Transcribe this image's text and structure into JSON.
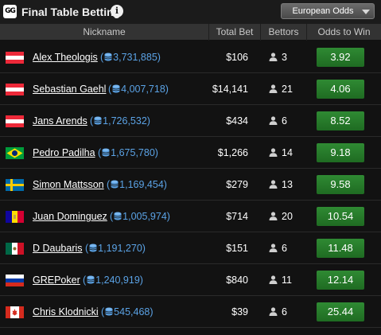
{
  "header": {
    "logo_text": "GG",
    "title": "Final Table Betting",
    "info_icon": "info-icon",
    "odds_format": "European Odds"
  },
  "columns": {
    "nickname": "Nickname",
    "total_bet": "Total Bet",
    "bettors": "Bettors",
    "odds_to_win": "Odds to Win"
  },
  "colors": {
    "chip_blue": "#5ba3e6",
    "odds_green": "#2b7d2f",
    "background": "#121212"
  },
  "rows": [
    {
      "flag": "austria",
      "name": "Alex Theologis",
      "chips": "3,731,885",
      "total_bet": "$106",
      "bettors": "3",
      "odds": "3.92"
    },
    {
      "flag": "austria",
      "name": "Sebastian Gaehl",
      "chips": "4,007,718",
      "total_bet": "$14,141",
      "bettors": "21",
      "odds": "4.06"
    },
    {
      "flag": "austria",
      "name": "Jans Arends",
      "chips": "1,726,532",
      "total_bet": "$434",
      "bettors": "6",
      "odds": "8.52"
    },
    {
      "flag": "brazil",
      "name": "Pedro Padilha",
      "chips": "1,675,780",
      "total_bet": "$1,266",
      "bettors": "14",
      "odds": "9.18"
    },
    {
      "flag": "sweden",
      "name": "Simon Mattsson",
      "chips": "1,169,454",
      "total_bet": "$279",
      "bettors": "13",
      "odds": "9.58"
    },
    {
      "flag": "andorra",
      "name": "Juan Dominguez",
      "chips": "1,005,974",
      "total_bet": "$714",
      "bettors": "20",
      "odds": "10.54"
    },
    {
      "flag": "mexico",
      "name": "D Daubaris",
      "chips": "1,191,270",
      "total_bet": "$151",
      "bettors": "6",
      "odds": "11.48"
    },
    {
      "flag": "russia",
      "name": "GREPoker",
      "chips": "1,240,919",
      "total_bet": "$840",
      "bettors": "11",
      "odds": "12.14"
    },
    {
      "flag": "canada",
      "name": "Chris Klodnicki",
      "chips": "545,468",
      "total_bet": "$39",
      "bettors": "6",
      "odds": "25.44"
    }
  ]
}
